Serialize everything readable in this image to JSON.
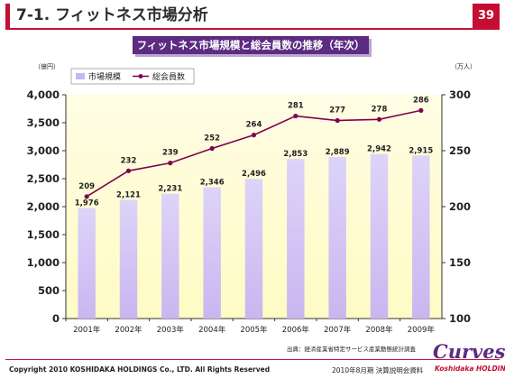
{
  "header": {
    "title": "7-1. フィットネス市場分析",
    "page_number": "39"
  },
  "colors": {
    "brand_red": "#c40f33",
    "brand_purple": "#5c2b82",
    "bar_fill": "#c9b6f0",
    "line_color": "#800050",
    "plot_bg": "#fffbc4"
  },
  "chart_data": {
    "type": "bar",
    "title": "フィットネス市場規模と総会員数の推移（年次）",
    "categories": [
      "2001年",
      "2002年",
      "2003年",
      "2004年",
      "2005年",
      "2006年",
      "2007年",
      "2008年",
      "2009年"
    ],
    "y_left_unit": "（億円）",
    "y_right_unit": "（万人）",
    "ylim_left": [
      0,
      4000
    ],
    "ylim_right": [
      100,
      300
    ],
    "yticks_left": [
      "0",
      "500",
      "1,000",
      "1,500",
      "2,000",
      "2,500",
      "3,000",
      "3,500",
      "4,000"
    ],
    "yticks_right": [
      "100",
      "150",
      "200",
      "250",
      "300"
    ],
    "series": [
      {
        "name": "市場規模",
        "type": "bar",
        "axis": "left",
        "values": [
          1976,
          2121,
          2231,
          2346,
          2496,
          2853,
          2889,
          2942,
          2915
        ],
        "labels": [
          "1,976",
          "2,121",
          "2,231",
          "2,346",
          "2,496",
          "2,853",
          "2,889",
          "2,942",
          "2,915"
        ]
      },
      {
        "name": "総会員数",
        "type": "line",
        "axis": "right",
        "values": [
          209,
          232,
          239,
          252,
          264,
          281,
          277,
          278,
          286
        ],
        "labels": [
          "209",
          "232",
          "239",
          "252",
          "264",
          "281",
          "277",
          "278",
          "286"
        ]
      }
    ],
    "grid": false,
    "legend": "top-left"
  },
  "footer": {
    "source": "出典：経済産業省特定サービス産業動態統計調査",
    "copyright": "Copyright 2010 KOSHIDAKA HOLDINGS Co., LTD. All Rights Reserved",
    "doc_label": "2010年8月期 決算説明会資料",
    "logo_text": "Curves",
    "logo_sub": "Koshidaka HOLDINGS"
  }
}
